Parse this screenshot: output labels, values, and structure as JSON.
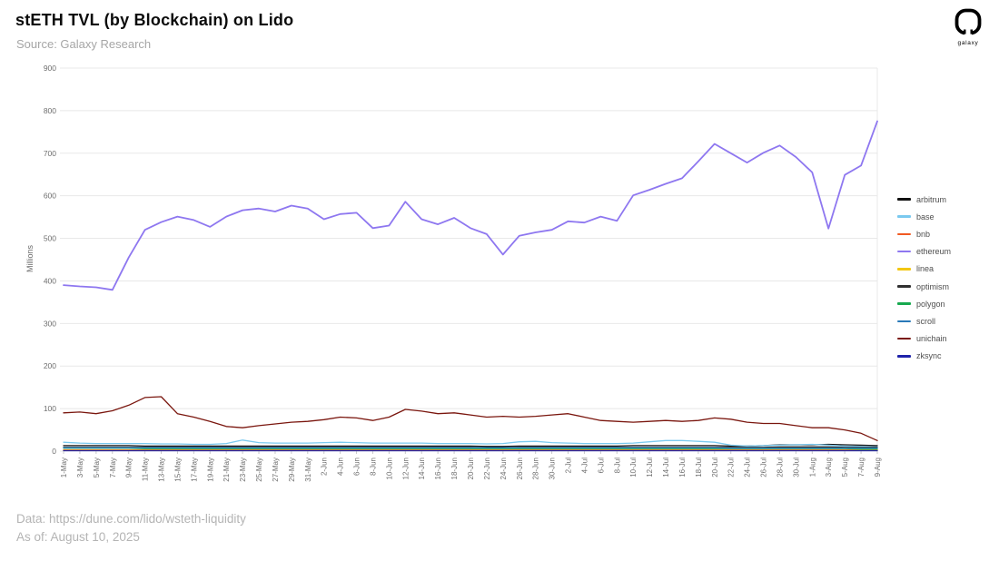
{
  "header": {
    "title": "stETH TVL (by Blockchain) on Lido",
    "subtitle": "Source: Galaxy Research"
  },
  "logo": {
    "label": "galaxy"
  },
  "footer": {
    "data_source": "Data: https://dune.com/lido/wsteth-liquidity",
    "as_of": "As of: August 10, 2025"
  },
  "chart_data": {
    "type": "line",
    "title": "stETH TVL (by Blockchain) on Lido",
    "xlabel": "",
    "ylabel": "Millions",
    "ylim": [
      0,
      900
    ],
    "ytick_step": 100,
    "grid": true,
    "legend_position": "right",
    "units": "millions USD",
    "categories": [
      "1-May",
      "3-May",
      "5-May",
      "7-May",
      "9-May",
      "11-May",
      "13-May",
      "15-May",
      "17-May",
      "19-May",
      "21-May",
      "23-May",
      "25-May",
      "27-May",
      "29-May",
      "31-May",
      "2-Jun",
      "4-Jun",
      "6-Jun",
      "8-Jun",
      "10-Jun",
      "12-Jun",
      "14-Jun",
      "16-Jun",
      "18-Jun",
      "20-Jun",
      "22-Jun",
      "24-Jun",
      "26-Jun",
      "28-Jun",
      "30-Jun",
      "2-Jul",
      "4-Jul",
      "6-Jul",
      "8-Jul",
      "10-Jul",
      "12-Jul",
      "14-Jul",
      "16-Jul",
      "18-Jul",
      "20-Jul",
      "22-Jul",
      "24-Jul",
      "26-Jul",
      "28-Jul",
      "30-Jul",
      "1-Aug",
      "3-Aug",
      "5-Aug",
      "7-Aug",
      "9-Aug"
    ],
    "series": [
      {
        "name": "arbitrum",
        "color": "#111111",
        "values": [
          13,
          13,
          13,
          13,
          13,
          12,
          12,
          12,
          12,
          12,
          12,
          12,
          12,
          12,
          12,
          12,
          12,
          12,
          12,
          12,
          12,
          12,
          12,
          12,
          12,
          12,
          11,
          11,
          12,
          12,
          12,
          12,
          12,
          12,
          12,
          13,
          13,
          13,
          13,
          13,
          13,
          12,
          12,
          13,
          15,
          15,
          15,
          16,
          15,
          14,
          13
        ]
      },
      {
        "name": "base",
        "color": "#7ac9ef",
        "values": [
          21,
          19,
          18,
          18,
          18,
          18,
          17,
          17,
          16,
          16,
          18,
          26,
          20,
          19,
          19,
          19,
          20,
          21,
          20,
          19,
          19,
          19,
          19,
          18,
          18,
          18,
          17,
          18,
          22,
          23,
          20,
          19,
          18,
          18,
          18,
          19,
          22,
          25,
          25,
          23,
          21,
          14,
          12,
          13,
          14,
          15,
          16,
          14,
          12,
          11,
          10
        ]
      },
      {
        "name": "bnb",
        "color": "#f15a22",
        "values": [
          3,
          3,
          3,
          3,
          3,
          3,
          3,
          3,
          3,
          3,
          3,
          3,
          3,
          3,
          3,
          3,
          3,
          3,
          3,
          3,
          3,
          3,
          3,
          3,
          3,
          3,
          3,
          3,
          3,
          3,
          3,
          3,
          3,
          3,
          3,
          3,
          3,
          3,
          3,
          3,
          3,
          3,
          3,
          3,
          3,
          3,
          3,
          3,
          3,
          3,
          3
        ]
      },
      {
        "name": "ethereum",
        "color": "#8e77f0",
        "values": [
          390,
          387,
          385,
          379,
          455,
          520,
          538,
          551,
          543,
          527,
          551,
          566,
          570,
          563,
          577,
          570,
          545,
          557,
          560,
          524,
          530,
          586,
          545,
          533,
          548,
          524,
          510,
          462,
          506,
          514,
          520,
          540,
          537,
          551,
          541,
          601,
          614,
          628,
          641,
          681,
          722,
          700,
          678,
          701,
          718,
          691,
          655,
          523,
          649,
          671,
          775
        ]
      },
      {
        "name": "linea",
        "color": "#f3c713",
        "values": [
          2,
          2,
          2,
          2,
          2,
          2,
          2,
          2,
          2,
          2,
          2,
          2,
          2,
          2,
          2,
          2,
          2,
          2,
          2,
          2,
          2,
          2,
          2,
          2,
          2,
          2,
          2,
          2,
          2,
          2,
          2,
          2,
          2,
          2,
          2,
          2,
          2,
          2,
          2,
          2,
          2,
          2,
          2,
          2,
          2,
          2,
          2,
          2,
          2,
          2,
          2
        ]
      },
      {
        "name": "optimism",
        "color": "#303030",
        "values": [
          9,
          9,
          9,
          9,
          9,
          9,
          9,
          9,
          9,
          9,
          9,
          9,
          9,
          9,
          9,
          9,
          9,
          9,
          9,
          9,
          9,
          9,
          9,
          9,
          9,
          9,
          8,
          8,
          9,
          9,
          9,
          9,
          9,
          9,
          9,
          9,
          9,
          9,
          9,
          9,
          9,
          9,
          9,
          9,
          10,
          10,
          10,
          10,
          9,
          9,
          9
        ]
      },
      {
        "name": "polygon",
        "color": "#17a94f",
        "values": [
          7,
          7,
          7,
          7,
          7,
          6,
          6,
          6,
          6,
          6,
          6,
          6,
          6,
          6,
          6,
          6,
          6,
          6,
          6,
          6,
          6,
          6,
          6,
          6,
          6,
          6,
          6,
          6,
          6,
          6,
          6,
          6,
          6,
          6,
          6,
          6,
          6,
          6,
          6,
          6,
          6,
          6,
          6,
          6,
          6,
          6,
          6,
          6,
          6,
          5,
          5
        ]
      },
      {
        "name": "scroll",
        "color": "#2979b8",
        "values": [
          8,
          8,
          8,
          8,
          8,
          8,
          8,
          8,
          8,
          8,
          8,
          8,
          8,
          8,
          8,
          8,
          8,
          8,
          8,
          8,
          8,
          8,
          8,
          8,
          8,
          8,
          8,
          8,
          8,
          8,
          8,
          8,
          8,
          8,
          8,
          8,
          8,
          8,
          8,
          8,
          8,
          7,
          7,
          7,
          7,
          7,
          7,
          7,
          7,
          7,
          7
        ]
      },
      {
        "name": "unichain",
        "color": "#7a160e",
        "values": [
          90,
          92,
          88,
          95,
          108,
          126,
          128,
          88,
          80,
          70,
          58,
          55,
          60,
          64,
          68,
          70,
          74,
          80,
          78,
          72,
          80,
          98,
          94,
          88,
          90,
          85,
          80,
          82,
          80,
          82,
          85,
          88,
          80,
          72,
          70,
          68,
          70,
          72,
          70,
          72,
          78,
          75,
          68,
          65,
          65,
          60,
          55,
          55,
          50,
          42,
          25
        ]
      },
      {
        "name": "zksync",
        "color": "#1e22aa",
        "values": [
          1,
          1,
          1,
          1,
          1,
          1,
          1,
          1,
          1,
          1,
          1,
          1,
          1,
          1,
          1,
          1,
          1,
          1,
          1,
          1,
          1,
          1,
          1,
          1,
          1,
          1,
          1,
          1,
          1,
          1,
          1,
          1,
          1,
          1,
          1,
          1,
          1,
          1,
          1,
          1,
          1,
          1,
          1,
          1,
          1,
          1,
          1,
          1,
          1,
          1,
          1
        ]
      }
    ]
  }
}
